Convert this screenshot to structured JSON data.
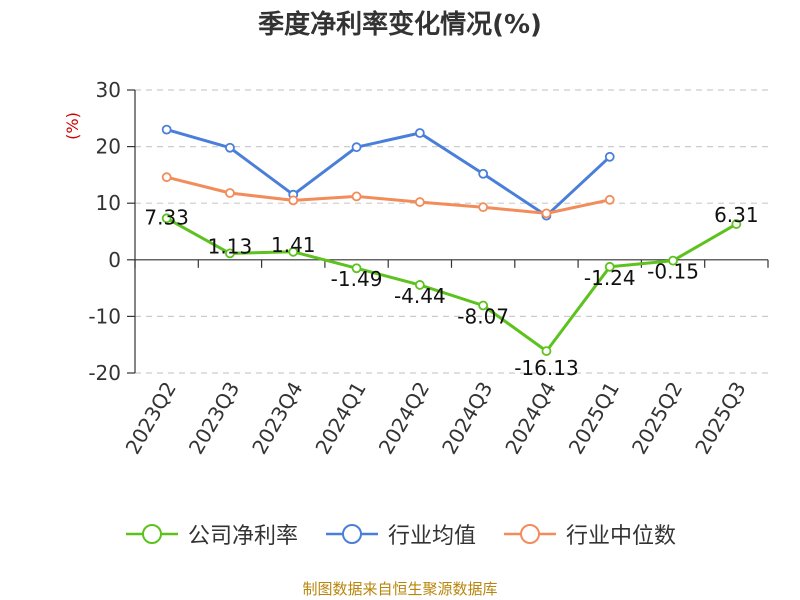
{
  "chart_data": {
    "type": "line",
    "title": "季度净利率变化情况(%)",
    "ylabel": "(%)",
    "xlabel": "",
    "categories": [
      "2023Q2",
      "2023Q3",
      "2023Q4",
      "2024Q1",
      "2024Q2",
      "2024Q3",
      "2024Q4",
      "2025Q1",
      "2025Q2",
      "2025Q3"
    ],
    "ylim": [
      -20,
      30
    ],
    "yticks": [
      30,
      20,
      10,
      0,
      -10,
      -20
    ],
    "grid": true,
    "legend_position": "bottom",
    "series": [
      {
        "name": "公司净利率",
        "color": "#5dc21e",
        "values": [
          7.33,
          1.13,
          1.41,
          -1.49,
          -4.44,
          -8.07,
          -16.13,
          -1.24,
          -0.15,
          6.31
        ],
        "labels": [
          "7.33",
          "1.13",
          "1.41",
          "-1.49",
          "-4.44",
          "-8.07",
          "-16.13",
          "-1.24",
          "-0.15",
          "6.31"
        ]
      },
      {
        "name": "行业均值",
        "color": "#4a7fd9",
        "values": [
          23.0,
          19.8,
          11.5,
          19.9,
          22.4,
          15.2,
          7.8,
          18.2,
          null,
          null
        ]
      },
      {
        "name": "行业中位数",
        "color": "#f28c5a",
        "values": [
          14.6,
          11.8,
          10.5,
          11.2,
          10.2,
          9.3,
          8.2,
          10.6,
          null,
          null
        ]
      }
    ]
  },
  "source": "制图数据来自恒生聚源数据库"
}
